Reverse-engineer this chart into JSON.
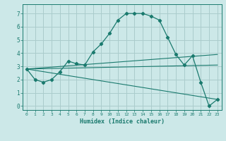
{
  "title": "",
  "xlabel": "Humidex (Indice chaleur)",
  "background_color": "#cce8e8",
  "grid_color": "#aacccc",
  "line_color": "#1a7a6e",
  "xlim": [
    -0.5,
    23.5
  ],
  "ylim": [
    -0.3,
    7.7
  ],
  "xtick_labels": [
    "0",
    "1",
    "2",
    "3",
    "4",
    "5",
    "6",
    "7",
    "8",
    "9",
    "10",
    "11",
    "12",
    "13",
    "14",
    "15",
    "16",
    "17",
    "18",
    "19",
    "20",
    "21",
    "22",
    "23"
  ],
  "yticks": [
    0,
    1,
    2,
    3,
    4,
    5,
    6,
    7
  ],
  "series": [
    {
      "x": [
        0,
        1,
        2,
        3,
        4,
        5,
        6,
        7,
        8,
        9,
        10,
        11,
        12,
        13,
        14,
        15,
        16,
        17,
        18,
        19,
        20,
        21,
        22,
        23
      ],
      "y": [
        2.8,
        2.0,
        1.8,
        2.0,
        2.6,
        3.4,
        3.2,
        3.1,
        4.1,
        4.7,
        5.5,
        6.5,
        7.0,
        7.0,
        7.0,
        6.8,
        6.5,
        5.2,
        3.9,
        3.1,
        3.8,
        1.8,
        0.0,
        0.5
      ]
    },
    {
      "x": [
        0,
        23
      ],
      "y": [
        2.8,
        3.9
      ]
    },
    {
      "x": [
        0,
        23
      ],
      "y": [
        2.8,
        3.1
      ]
    },
    {
      "x": [
        0,
        23
      ],
      "y": [
        2.8,
        0.5
      ]
    }
  ]
}
